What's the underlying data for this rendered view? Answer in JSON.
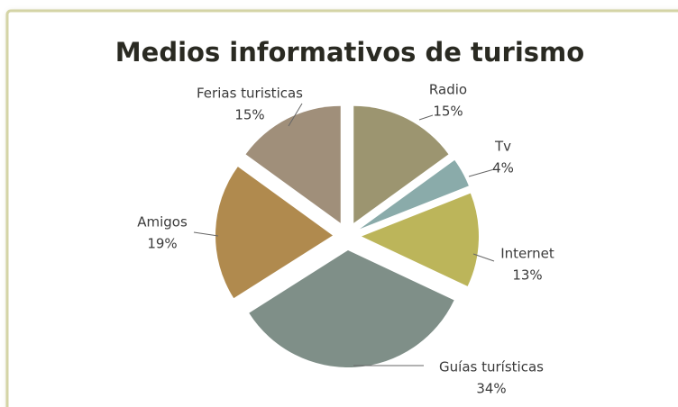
{
  "chart_data": {
    "type": "pie",
    "title": "Medios informativos de turismo",
    "categories": [
      "Radio",
      "Tv",
      "Internet",
      "Guías turísticas",
      "Amigos",
      "Ferias turisticas"
    ],
    "values": [
      15,
      4,
      13,
      34,
      19,
      15
    ],
    "value_labels": [
      "15%",
      "4%",
      "13%",
      "34%",
      "19%",
      "15%"
    ],
    "colors": [
      "#9c9570",
      "#8aabaa",
      "#bcb55a",
      "#7f8f88",
      "#b08a4e",
      "#a08f7a"
    ]
  }
}
